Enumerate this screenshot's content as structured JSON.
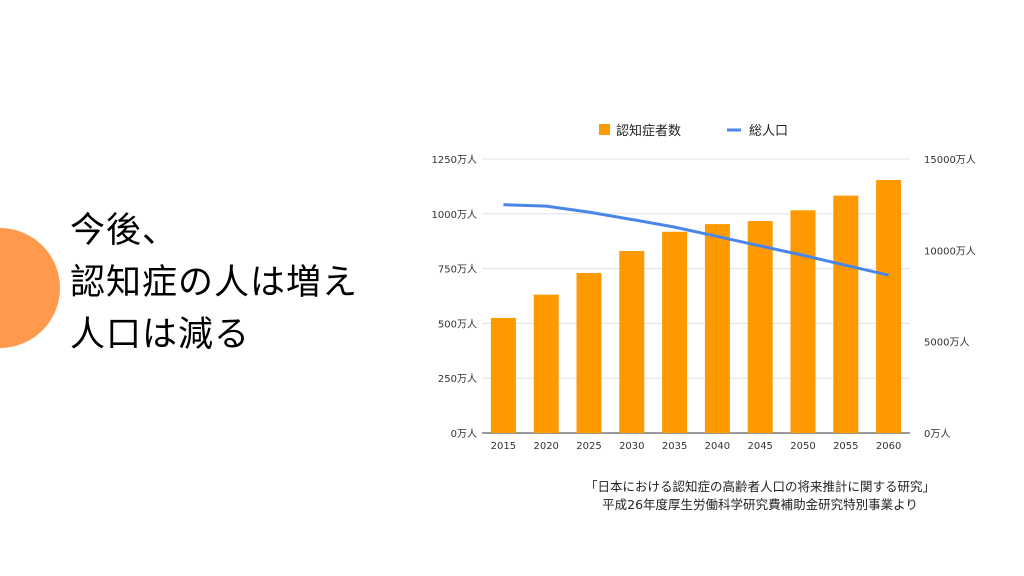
{
  "headline": {
    "lines": [
      "今後、",
      "認知症の人は増え",
      "人口は減る"
    ]
  },
  "colors": {
    "accent_circle": "#FF994D",
    "bars": "#FF9900",
    "line": "#4A86E8",
    "grid": "#E0E0E0"
  },
  "chart_data": {
    "type": "bar+line",
    "categories": [
      "2015",
      "2020",
      "2025",
      "2030",
      "2035",
      "2040",
      "2045",
      "2050",
      "2055",
      "2060"
    ],
    "series": [
      {
        "name": "認知症者数",
        "type": "bar",
        "axis": "left",
        "values": [
          525,
          631,
          730,
          830,
          918,
          953,
          967,
          1016,
          1083,
          1154
        ]
      },
      {
        "name": "総人口",
        "type": "line",
        "axis": "right",
        "values": [
          12500,
          12420,
          12090,
          11690,
          11270,
          10760,
          10240,
          9730,
          9180,
          8640
        ]
      }
    ],
    "left_axis": {
      "ylim": [
        0,
        1250
      ],
      "ticks": [
        0,
        250,
        500,
        750,
        1000,
        1250
      ],
      "tick_labels": [
        "0万人",
        "250万人",
        "500万人",
        "750万人",
        "1000万人",
        "1250万人"
      ]
    },
    "right_axis": {
      "ylim": [
        0,
        15000
      ],
      "ticks": [
        0,
        5000,
        10000,
        15000
      ],
      "tick_labels": [
        "0万人",
        "5000万人",
        "10000万人",
        "15000万人"
      ]
    },
    "legend": {
      "placement": "top-center",
      "entries": [
        "認知症者数",
        "総人口"
      ]
    },
    "grid": true
  },
  "source": {
    "line1": "「日本における認知症の高齢者人口の将来推計に関する研究」",
    "line2": "平成26年度厚生労働科学研究費補助金研究特別事業より"
  }
}
